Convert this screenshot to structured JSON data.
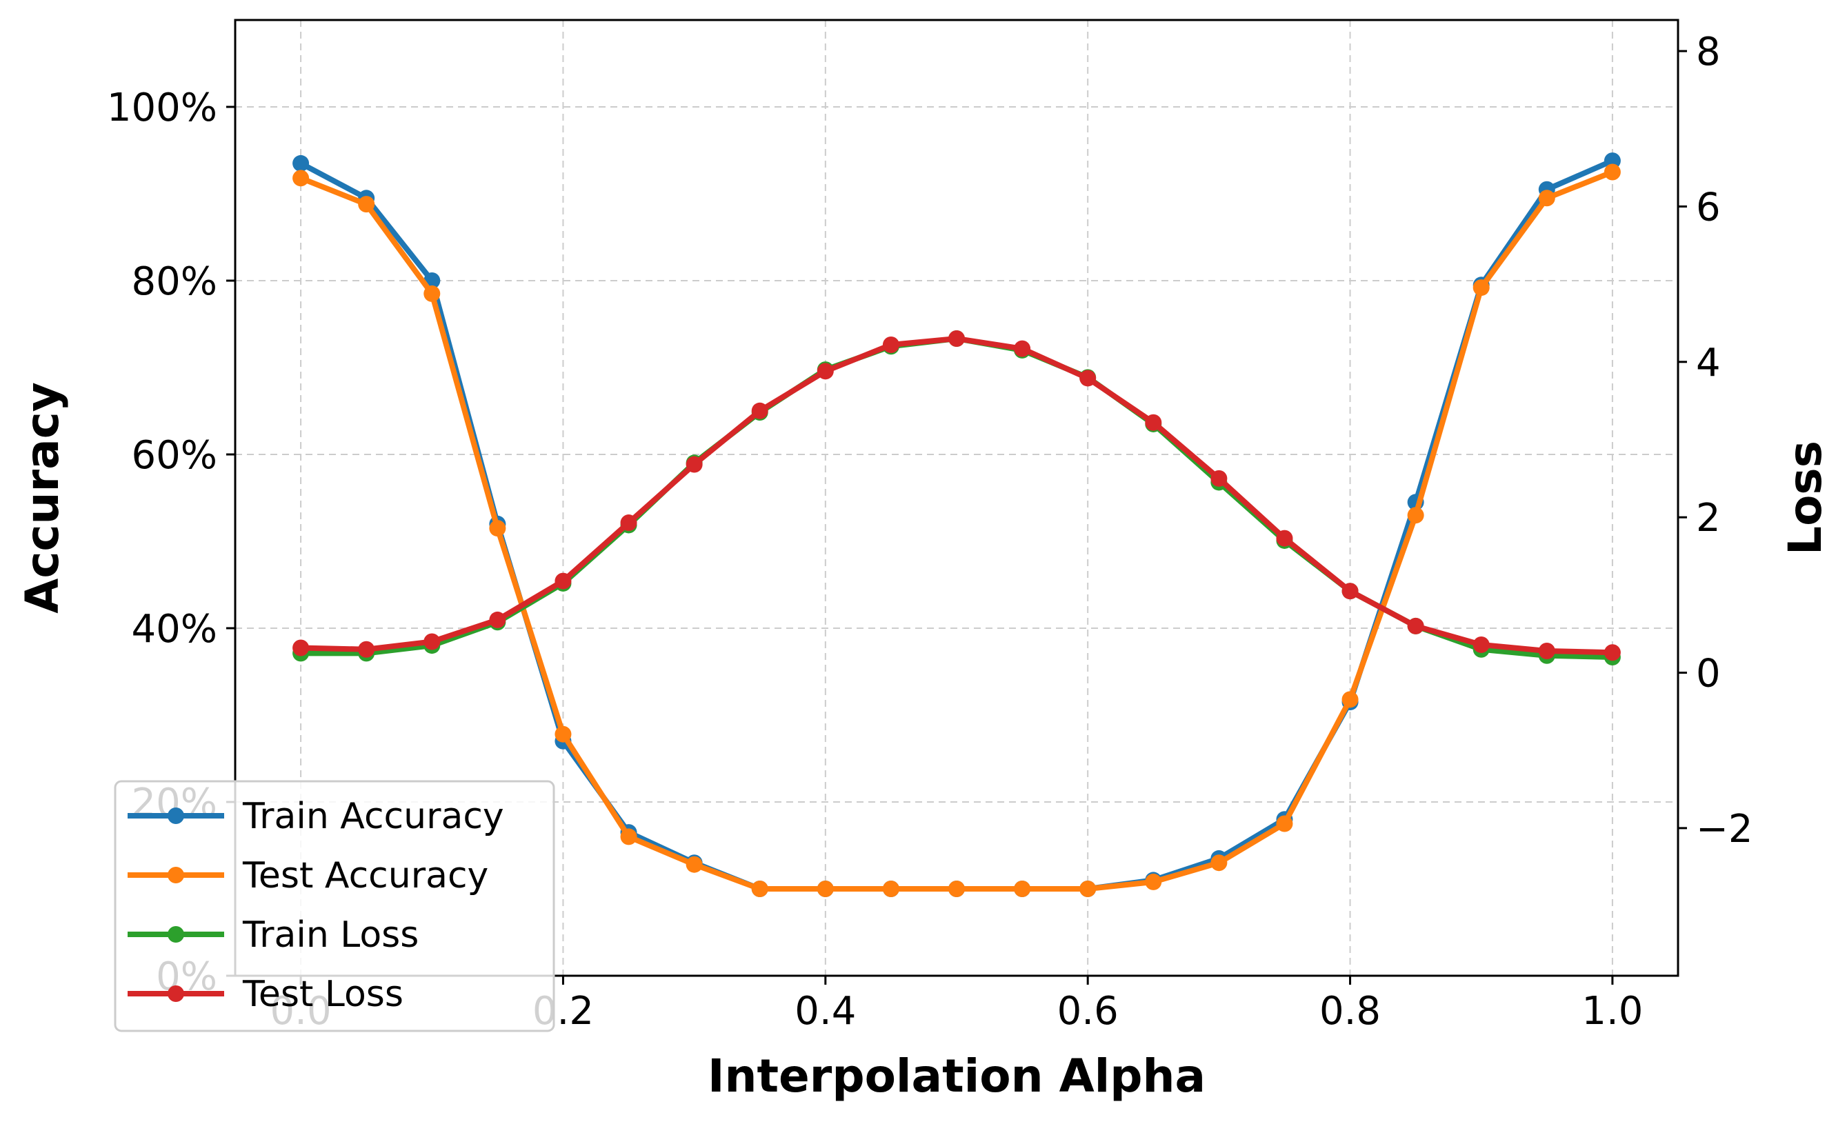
{
  "chart_data": {
    "type": "line",
    "title": "",
    "xlabel": "Interpolation Alpha",
    "ylabel_left": "Accuracy",
    "ylabel_right": "Loss",
    "x": [
      0.0,
      0.05,
      0.1,
      0.15,
      0.2,
      0.25,
      0.3,
      0.35,
      0.4,
      0.45,
      0.5,
      0.55,
      0.6,
      0.65,
      0.7,
      0.75,
      0.8,
      0.85,
      0.9,
      0.95,
      1.0
    ],
    "xlim": [
      -0.05,
      1.05
    ],
    "xticks": [
      0.0,
      0.2,
      0.4,
      0.6,
      0.8,
      1.0
    ],
    "xtick_labels": [
      "0.0",
      "0.2",
      "0.4",
      "0.6",
      "0.8",
      "1.0"
    ],
    "ylim_left": [
      0,
      110
    ],
    "yticks_left": [
      0,
      20,
      40,
      60,
      80,
      100
    ],
    "ytick_labels_left": [
      "0%",
      "20%",
      "40%",
      "60%",
      "80%",
      "100%"
    ],
    "ylim_right": [
      -3.9,
      8.4
    ],
    "yticks_right": [
      -2,
      0,
      2,
      4,
      6,
      8
    ],
    "ytick_labels_right": [
      "−2",
      "0",
      "2",
      "4",
      "6",
      "8"
    ],
    "grid": true,
    "legend_position": "lower-left",
    "series": [
      {
        "name": "Train Accuracy",
        "axis": "left",
        "color": "#1f77b4",
        "values": [
          93.5,
          89.5,
          80.0,
          52.0,
          27.0,
          16.5,
          13.0,
          10.0,
          10.0,
          10.0,
          10.0,
          10.0,
          10.0,
          11.0,
          13.5,
          18.0,
          31.5,
          54.5,
          79.5,
          90.5,
          93.8
        ]
      },
      {
        "name": "Test Accuracy",
        "axis": "left",
        "color": "#ff7f0e",
        "values": [
          91.8,
          88.8,
          78.5,
          51.5,
          27.8,
          16.0,
          12.8,
          10.0,
          10.0,
          10.0,
          10.0,
          10.0,
          10.0,
          10.8,
          13.0,
          17.5,
          31.8,
          53.0,
          79.2,
          89.5,
          92.5
        ]
      },
      {
        "name": "Train Loss",
        "axis": "right",
        "color": "#2ca02c",
        "values": [
          0.25,
          0.25,
          0.35,
          0.65,
          1.15,
          1.9,
          2.7,
          3.35,
          3.9,
          4.2,
          4.3,
          4.15,
          3.8,
          3.2,
          2.45,
          1.7,
          1.05,
          0.6,
          0.3,
          0.22,
          0.2
        ]
      },
      {
        "name": "Test Loss",
        "axis": "right",
        "color": "#d62728",
        "values": [
          0.32,
          0.3,
          0.4,
          0.68,
          1.18,
          1.93,
          2.68,
          3.37,
          3.88,
          4.22,
          4.3,
          4.17,
          3.79,
          3.22,
          2.5,
          1.73,
          1.05,
          0.6,
          0.36,
          0.28,
          0.26
        ]
      }
    ]
  }
}
